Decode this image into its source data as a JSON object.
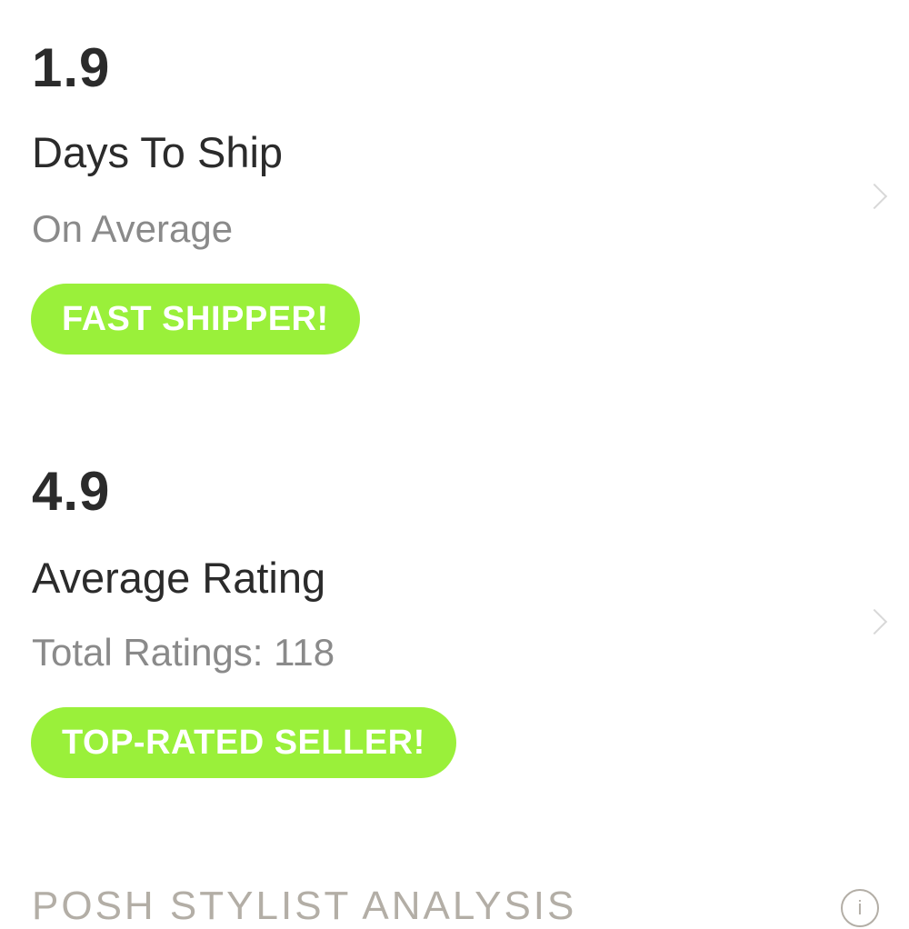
{
  "stats": [
    {
      "value": "1.9",
      "label": "Days To Ship",
      "sub": "On Average",
      "badge": "FAST SHIPPER!"
    },
    {
      "value": "4.9",
      "label": "Average Rating",
      "sub": "Total Ratings: 118",
      "badge": "TOP-RATED SELLER!"
    }
  ],
  "section": {
    "title": "POSH STYLIST ANALYSIS",
    "info_icon": "i"
  },
  "colors": {
    "badge": "#9AF03A",
    "section": "#B3AEA6"
  }
}
